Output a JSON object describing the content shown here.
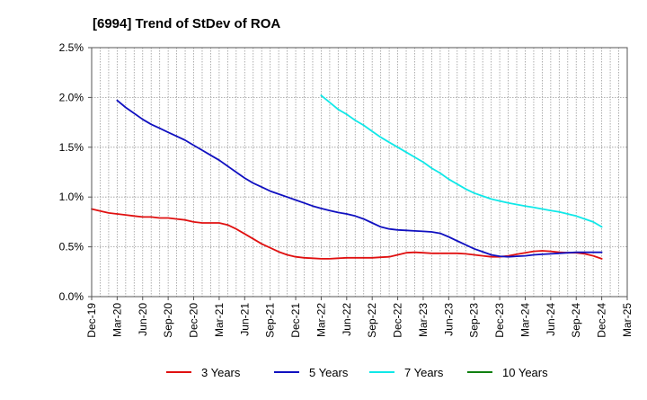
{
  "chart_data": {
    "type": "line",
    "title": "[6994]  Trend of StDev of ROA",
    "xlabel": "",
    "ylabel": "",
    "x_ticks": [
      "Dec-19",
      "Mar-20",
      "Jun-20",
      "Sep-20",
      "Dec-20",
      "Mar-21",
      "Jun-21",
      "Sep-21",
      "Dec-21",
      "Mar-22",
      "Jun-22",
      "Sep-22",
      "Dec-22",
      "Mar-23",
      "Jun-23",
      "Sep-23",
      "Dec-23",
      "Mar-24",
      "Jun-24",
      "Sep-24",
      "Dec-24",
      "Mar-25"
    ],
    "y_ticks": [
      "0.0%",
      "0.5%",
      "1.0%",
      "1.5%",
      "2.0%",
      "2.5%"
    ],
    "ylim": [
      0,
      2.5
    ],
    "grid": "vertical dotted lines at every month, horizontal dotted lines at each y tick",
    "legend_position": "bottom",
    "series": [
      {
        "name": "3 Years",
        "color": "#e01010",
        "points": [
          [
            "Dec-19",
            0.88
          ],
          [
            "Jan-20",
            0.86
          ],
          [
            "Feb-20",
            0.84
          ],
          [
            "Mar-20",
            0.83
          ],
          [
            "Apr-20",
            0.82
          ],
          [
            "May-20",
            0.81
          ],
          [
            "Jun-20",
            0.8
          ],
          [
            "Jul-20",
            0.8
          ],
          [
            "Aug-20",
            0.79
          ],
          [
            "Sep-20",
            0.79
          ],
          [
            "Oct-20",
            0.78
          ],
          [
            "Nov-20",
            0.77
          ],
          [
            "Dec-20",
            0.75
          ],
          [
            "Jan-21",
            0.74
          ],
          [
            "Feb-21",
            0.74
          ],
          [
            "Mar-21",
            0.74
          ],
          [
            "Apr-21",
            0.72
          ],
          [
            "May-21",
            0.68
          ],
          [
            "Jun-21",
            0.63
          ],
          [
            "Jul-21",
            0.58
          ],
          [
            "Aug-21",
            0.53
          ],
          [
            "Sep-21",
            0.49
          ],
          [
            "Oct-21",
            0.45
          ],
          [
            "Nov-21",
            0.42
          ],
          [
            "Dec-21",
            0.4
          ],
          [
            "Jan-22",
            0.39
          ],
          [
            "Feb-22",
            0.385
          ],
          [
            "Mar-22",
            0.38
          ],
          [
            "Apr-22",
            0.38
          ],
          [
            "May-22",
            0.385
          ],
          [
            "Jun-22",
            0.39
          ],
          [
            "Jul-22",
            0.39
          ],
          [
            "Aug-22",
            0.39
          ],
          [
            "Sep-22",
            0.39
          ],
          [
            "Oct-22",
            0.395
          ],
          [
            "Nov-22",
            0.4
          ],
          [
            "Dec-22",
            0.42
          ],
          [
            "Jan-23",
            0.44
          ],
          [
            "Feb-23",
            0.445
          ],
          [
            "Mar-23",
            0.44
          ],
          [
            "Apr-23",
            0.435
          ],
          [
            "May-23",
            0.435
          ],
          [
            "Jun-23",
            0.435
          ],
          [
            "Jul-23",
            0.435
          ],
          [
            "Aug-23",
            0.43
          ],
          [
            "Sep-23",
            0.42
          ],
          [
            "Oct-23",
            0.41
          ],
          [
            "Nov-23",
            0.4
          ],
          [
            "Dec-23",
            0.4
          ],
          [
            "Jan-24",
            0.41
          ],
          [
            "Feb-24",
            0.425
          ],
          [
            "Mar-24",
            0.44
          ],
          [
            "Apr-24",
            0.455
          ],
          [
            "May-24",
            0.46
          ],
          [
            "Jun-24",
            0.455
          ],
          [
            "Jul-24",
            0.445
          ],
          [
            "Aug-24",
            0.44
          ],
          [
            "Sep-24",
            0.44
          ],
          [
            "Oct-24",
            0.43
          ],
          [
            "Nov-24",
            0.41
          ],
          [
            "Dec-24",
            0.38
          ]
        ]
      },
      {
        "name": "5 Years",
        "color": "#1010c0",
        "points": [
          [
            "Mar-20",
            1.97
          ],
          [
            "Apr-20",
            1.9
          ],
          [
            "May-20",
            1.84
          ],
          [
            "Jun-20",
            1.78
          ],
          [
            "Jul-20",
            1.73
          ],
          [
            "Aug-20",
            1.69
          ],
          [
            "Sep-20",
            1.65
          ],
          [
            "Oct-20",
            1.61
          ],
          [
            "Nov-20",
            1.57
          ],
          [
            "Dec-20",
            1.52
          ],
          [
            "Jan-21",
            1.47
          ],
          [
            "Feb-21",
            1.42
          ],
          [
            "Mar-21",
            1.37
          ],
          [
            "Apr-21",
            1.31
          ],
          [
            "May-21",
            1.25
          ],
          [
            "Jun-21",
            1.19
          ],
          [
            "Jul-21",
            1.14
          ],
          [
            "Aug-21",
            1.1
          ],
          [
            "Sep-21",
            1.06
          ],
          [
            "Oct-21",
            1.03
          ],
          [
            "Nov-21",
            1.0
          ],
          [
            "Dec-21",
            0.97
          ],
          [
            "Jan-22",
            0.94
          ],
          [
            "Feb-22",
            0.91
          ],
          [
            "Mar-22",
            0.885
          ],
          [
            "Apr-22",
            0.865
          ],
          [
            "May-22",
            0.845
          ],
          [
            "Jun-22",
            0.83
          ],
          [
            "Jul-22",
            0.81
          ],
          [
            "Aug-22",
            0.78
          ],
          [
            "Sep-22",
            0.74
          ],
          [
            "Oct-22",
            0.7
          ],
          [
            "Nov-22",
            0.68
          ],
          [
            "Dec-22",
            0.67
          ],
          [
            "Jan-23",
            0.665
          ],
          [
            "Feb-23",
            0.66
          ],
          [
            "Mar-23",
            0.655
          ],
          [
            "Apr-23",
            0.65
          ],
          [
            "May-23",
            0.635
          ],
          [
            "Jun-23",
            0.6
          ],
          [
            "Jul-23",
            0.56
          ],
          [
            "Aug-23",
            0.52
          ],
          [
            "Sep-23",
            0.48
          ],
          [
            "Oct-23",
            0.45
          ],
          [
            "Nov-23",
            0.42
          ],
          [
            "Dec-23",
            0.405
          ],
          [
            "Jan-24",
            0.4
          ],
          [
            "Feb-24",
            0.405
          ],
          [
            "Mar-24",
            0.41
          ],
          [
            "Apr-24",
            0.42
          ],
          [
            "May-24",
            0.425
          ],
          [
            "Jun-24",
            0.43
          ],
          [
            "Jul-24",
            0.435
          ],
          [
            "Aug-24",
            0.44
          ],
          [
            "Sep-24",
            0.445
          ],
          [
            "Oct-24",
            0.445
          ],
          [
            "Nov-24",
            0.445
          ],
          [
            "Dec-24",
            0.445
          ]
        ]
      },
      {
        "name": "7 Years",
        "color": "#10e8e8",
        "points": [
          [
            "Mar-22",
            2.02
          ],
          [
            "Apr-22",
            1.95
          ],
          [
            "May-22",
            1.88
          ],
          [
            "Jun-22",
            1.83
          ],
          [
            "Jul-22",
            1.77
          ],
          [
            "Aug-22",
            1.72
          ],
          [
            "Sep-22",
            1.66
          ],
          [
            "Oct-22",
            1.6
          ],
          [
            "Nov-22",
            1.55
          ],
          [
            "Dec-22",
            1.5
          ],
          [
            "Jan-23",
            1.45
          ],
          [
            "Feb-23",
            1.4
          ],
          [
            "Mar-23",
            1.35
          ],
          [
            "Apr-23",
            1.29
          ],
          [
            "May-23",
            1.24
          ],
          [
            "Jun-23",
            1.18
          ],
          [
            "Jul-23",
            1.13
          ],
          [
            "Aug-23",
            1.08
          ],
          [
            "Sep-23",
            1.04
          ],
          [
            "Oct-23",
            1.01
          ],
          [
            "Nov-23",
            0.98
          ],
          [
            "Dec-23",
            0.96
          ],
          [
            "Jan-24",
            0.94
          ],
          [
            "Feb-24",
            0.925
          ],
          [
            "Mar-24",
            0.91
          ],
          [
            "Apr-24",
            0.895
          ],
          [
            "May-24",
            0.88
          ],
          [
            "Jun-24",
            0.865
          ],
          [
            "Jul-24",
            0.85
          ],
          [
            "Aug-24",
            0.83
          ],
          [
            "Sep-24",
            0.81
          ],
          [
            "Oct-24",
            0.78
          ],
          [
            "Nov-24",
            0.75
          ],
          [
            "Dec-24",
            0.7
          ]
        ]
      },
      {
        "name": "10 Years",
        "color": "#108010",
        "points": []
      }
    ]
  }
}
